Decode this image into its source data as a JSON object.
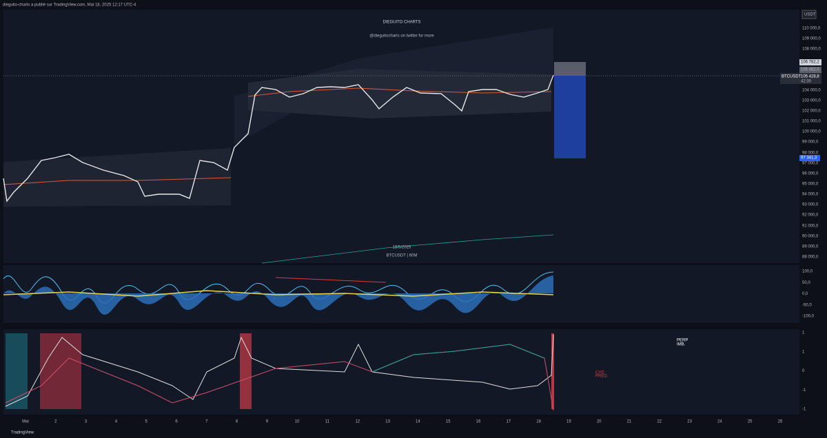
{
  "header": {
    "publisher": "dieguito-charts a publié sur TradingView.com, Mai 18, 2025 12:17 UTC-4"
  },
  "title": "DIEGUITO CHARTS",
  "subtitle": "@dieguitocharts on twitter for more",
  "watermark": {
    "date": "18/5/2025",
    "symbol": "BTCUSDT | 60M"
  },
  "price_axis": {
    "currency": "USDT",
    "labels": [
      "110 000,0",
      "109 000,0",
      "108 000,0",
      "104 000,0",
      "103 000,0",
      "102 000,0",
      "101 000,0",
      "100 000,0",
      "99 000,0",
      "98 000,0",
      "97 000,0",
      "96 000,0",
      "95 000,0",
      "94 000,0",
      "93 000,0",
      "92 000,0",
      "91 000,0",
      "90 000,0",
      "89 000,0",
      "88 000,0"
    ],
    "markers": {
      "high": "106 782,2",
      "level": "105 482,0",
      "symbol": "BTCUSDT",
      "last": "105 428,8",
      "countdown": "42:30",
      "low": "97 341,3"
    }
  },
  "oscillator_axis": {
    "labels": [
      "100,0",
      "50,0",
      "0,0",
      "-50,0",
      "-100,0"
    ]
  },
  "flow_pane": {
    "labels": [
      "1",
      "1",
      "0",
      "-1",
      "-1"
    ],
    "perp": "PERP",
    "imb": "IMB.",
    "cvd": "CVD",
    "pred": "PRED."
  },
  "time_axis": {
    "labels": [
      "Mai",
      "2",
      "3",
      "4",
      "5",
      "6",
      "7",
      "8",
      "9",
      "10",
      "11",
      "12",
      "13",
      "14",
      "15",
      "16",
      "17",
      "18",
      "19",
      "20",
      "21",
      "22",
      "23",
      "24",
      "25",
      "26"
    ]
  },
  "footer": {
    "brand": "TradingView"
  }
}
